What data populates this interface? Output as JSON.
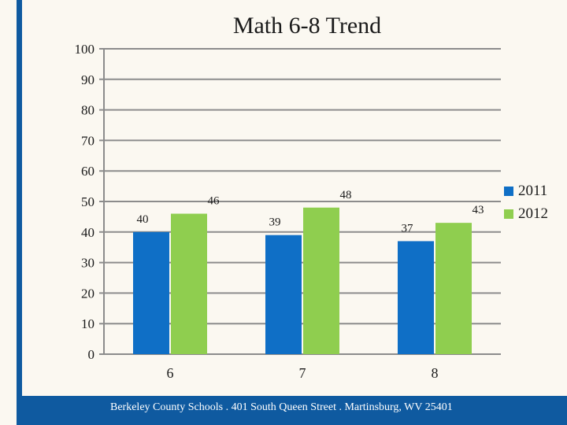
{
  "chart_data": {
    "type": "bar",
    "title": "Math 6-8 Trend",
    "xlabel": "",
    "ylabel": "",
    "categories": [
      "6",
      "7",
      "8"
    ],
    "ylim": [
      0,
      100
    ],
    "yticks": [
      0,
      10,
      20,
      30,
      40,
      50,
      60,
      70,
      80,
      90,
      100
    ],
    "grid": true,
    "legend_position": "right",
    "series": [
      {
        "name": "2011",
        "values": [
          40,
          39,
          37
        ],
        "color": "#0f6fc6"
      },
      {
        "name": "2012",
        "values": [
          46,
          48,
          43
        ],
        "color": "#8fce4f"
      }
    ]
  },
  "footer": {
    "text": "Berkeley County Schools . 401 South Queen Street . Martinsburg, WV  25401"
  }
}
